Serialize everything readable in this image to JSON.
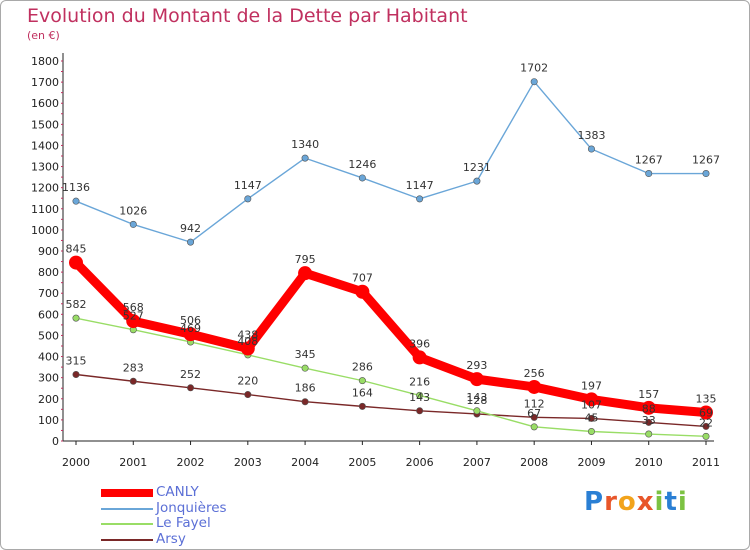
{
  "title": "Evolution du Montant de la Dette par Habitant",
  "subtitle": "(en €)",
  "logo": {
    "text": "Proxiti",
    "letters": [
      "P",
      "r",
      "o",
      "x",
      "i",
      "t",
      "i"
    ],
    "colors": [
      "#2a7fd4",
      "#e8562a",
      "#f2a31b",
      "#e8562a",
      "#7cc242",
      "#2a7fd4",
      "#7cc242"
    ]
  },
  "chart_data": {
    "type": "line",
    "title": "Evolution du Montant de la Dette par Habitant",
    "ylabel": "(en €)",
    "xlabel": "",
    "ylim": [
      0,
      1800
    ],
    "yticks": [
      0,
      100,
      200,
      300,
      400,
      500,
      600,
      700,
      800,
      900,
      1000,
      1100,
      1200,
      1300,
      1400,
      1500,
      1600,
      1700,
      1800
    ],
    "grid": false,
    "legend_position": "bottom-left",
    "x": [
      "2000",
      "2001",
      "2002",
      "2003",
      "2004",
      "2005",
      "2006",
      "2007",
      "2008",
      "2009",
      "2010",
      "2011"
    ],
    "series": [
      {
        "name": "CANLY",
        "color": "#ff0000",
        "values": [
          845,
          568,
          506,
          438,
          795,
          707,
          396,
          293,
          256,
          197,
          157,
          135
        ]
      },
      {
        "name": "Jonquières",
        "color": "#6aa6d8",
        "values": [
          1136,
          1026,
          942,
          1147,
          1340,
          1246,
          1147,
          1231,
          1702,
          1383,
          1267,
          1267
        ]
      },
      {
        "name": "Le Fayel",
        "color": "#99dd66",
        "values": [
          582,
          527,
          469,
          408,
          345,
          286,
          216,
          143,
          67,
          45,
          33,
          22
        ]
      },
      {
        "name": "Arsy",
        "color": "#7a2828",
        "values": [
          315,
          283,
          252,
          220,
          186,
          164,
          143,
          128,
          112,
          107,
          88,
          69
        ]
      }
    ]
  }
}
